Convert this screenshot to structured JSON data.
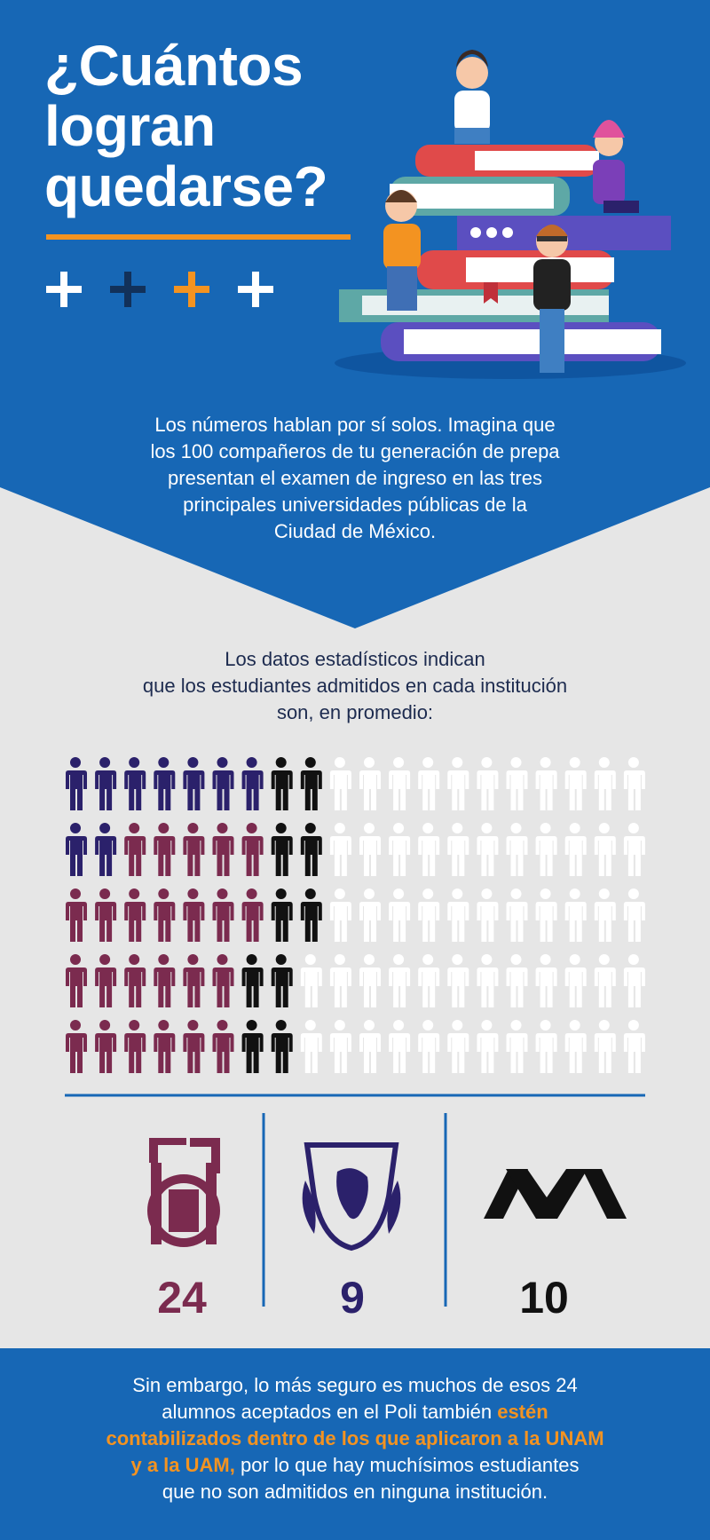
{
  "header": {
    "title_lines": [
      "¿Cuántos",
      "logran",
      "quedarse?"
    ]
  },
  "intro": {
    "lines": [
      "Los números hablan por sí solos. Imagina que",
      "los 100 compañeros de tu generación de prepa",
      "presentan el examen de ingreso en las tres",
      "principales universidades públicas de la",
      "Ciudad de México."
    ]
  },
  "stats_intro": {
    "lines": [
      "Los datos estadísticos indican",
      "que los estudiantes admitidos en cada institución",
      "son, en promedio:"
    ]
  },
  "institutions": [
    {
      "value": 24,
      "color": "#7b2b4f"
    },
    {
      "value": 9,
      "color": "#2b216b"
    },
    {
      "value": 10,
      "color": "#111111"
    }
  ],
  "footer": {
    "lines": [
      [
        {
          "text": "Sin embargo, lo más seguro es muchos de esos 24",
          "highlight": false
        }
      ],
      [
        {
          "text": "alumnos aceptados en el Poli también ",
          "highlight": false
        },
        {
          "text": "estén",
          "highlight": true
        }
      ],
      [
        {
          "text": "contabilizados dentro de los que aplicaron a la UNAM",
          "highlight": true
        }
      ],
      [
        {
          "text": "y a la UAM,",
          "highlight": true
        },
        {
          "text": " por lo que hay muchísimos estudiantes",
          "highlight": false
        }
      ],
      [
        {
          "text": "que no son admitidos en ninguna institución.",
          "highlight": false
        }
      ]
    ]
  }
}
